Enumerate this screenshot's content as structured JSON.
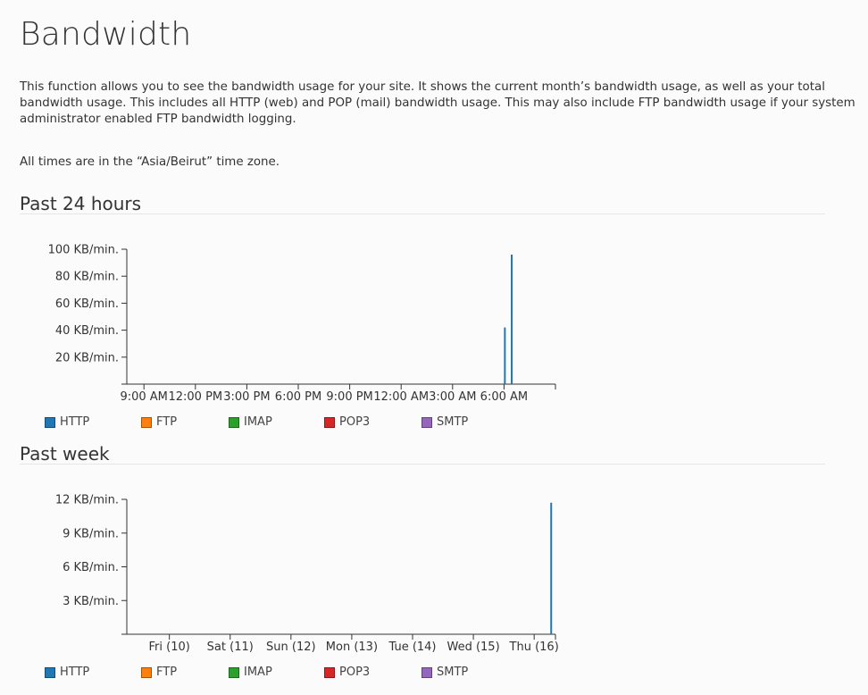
{
  "page": {
    "title": "Bandwidth",
    "description": "This function allows you to see the bandwidth usage for your site. It shows the current month’s bandwidth usage, as well as your total bandwidth usage. This includes all HTTP (web) and POP (mail) bandwidth usage. This may also include FTP bandwidth usage if your system administrator enabled FTP bandwidth logging.",
    "timezone_note": "All times are in the “Asia/Beirut” time zone."
  },
  "sections": [
    {
      "title": "Past 24 hours"
    },
    {
      "title": "Past week"
    }
  ],
  "legend": [
    {
      "label": "HTTP",
      "color": "#1f77b4"
    },
    {
      "label": "FTP",
      "color": "#ff7f0e"
    },
    {
      "label": "IMAP",
      "color": "#2ca02c"
    },
    {
      "label": "POP3",
      "color": "#d62728"
    },
    {
      "label": "SMTP",
      "color": "#9467bd"
    }
  ],
  "chart_data": [
    {
      "type": "bar",
      "title": "Past 24 hours",
      "ylim": [
        0,
        100
      ],
      "y_ticks": [
        {
          "value": 20,
          "label": "20 KB/min."
        },
        {
          "value": 40,
          "label": "40 KB/min."
        },
        {
          "value": 60,
          "label": "60 KB/min."
        },
        {
          "value": 80,
          "label": "80 KB/min."
        },
        {
          "value": 100,
          "label": "100 KB/min."
        }
      ],
      "x_range_hours": [
        -1,
        24
      ],
      "x_ticks": [
        {
          "value": 0,
          "label": "9:00 AM"
        },
        {
          "value": 3,
          "label": "12:00 PM"
        },
        {
          "value": 6,
          "label": "3:00 PM"
        },
        {
          "value": 9,
          "label": "6:00 PM"
        },
        {
          "value": 12,
          "label": "9:00 PM"
        },
        {
          "value": 15,
          "label": "12:00 AM"
        },
        {
          "value": 18,
          "label": "3:00 AM"
        },
        {
          "value": 21,
          "label": "6:00 AM"
        }
      ],
      "series": [
        {
          "name": "HTTP",
          "color": "#1f77b4",
          "points": [
            {
              "x": 21.05,
              "y": 42
            },
            {
              "x": 21.45,
              "y": 96
            }
          ]
        }
      ]
    },
    {
      "type": "bar",
      "title": "Past week",
      "ylim": [
        0,
        12
      ],
      "y_ticks": [
        {
          "value": 3,
          "label": "3 KB/min."
        },
        {
          "value": 6,
          "label": "6 KB/min."
        },
        {
          "value": 9,
          "label": "9 KB/min."
        },
        {
          "value": 12,
          "label": "12 KB/min."
        }
      ],
      "x_range_days": [
        0,
        7.05
      ],
      "x_ticks": [
        {
          "value": 0.7,
          "label": "Fri (10)"
        },
        {
          "value": 1.7,
          "label": "Sat (11)"
        },
        {
          "value": 2.7,
          "label": "Sun (12)"
        },
        {
          "value": 3.7,
          "label": "Mon (13)"
        },
        {
          "value": 4.7,
          "label": "Tue (14)"
        },
        {
          "value": 5.7,
          "label": "Wed (15)"
        },
        {
          "value": 6.7,
          "label": "Thu (16)"
        }
      ],
      "series": [
        {
          "name": "HTTP",
          "color": "#1f77b4",
          "points": [
            {
              "x": 6.98,
              "y": 11.7
            }
          ]
        }
      ]
    }
  ]
}
